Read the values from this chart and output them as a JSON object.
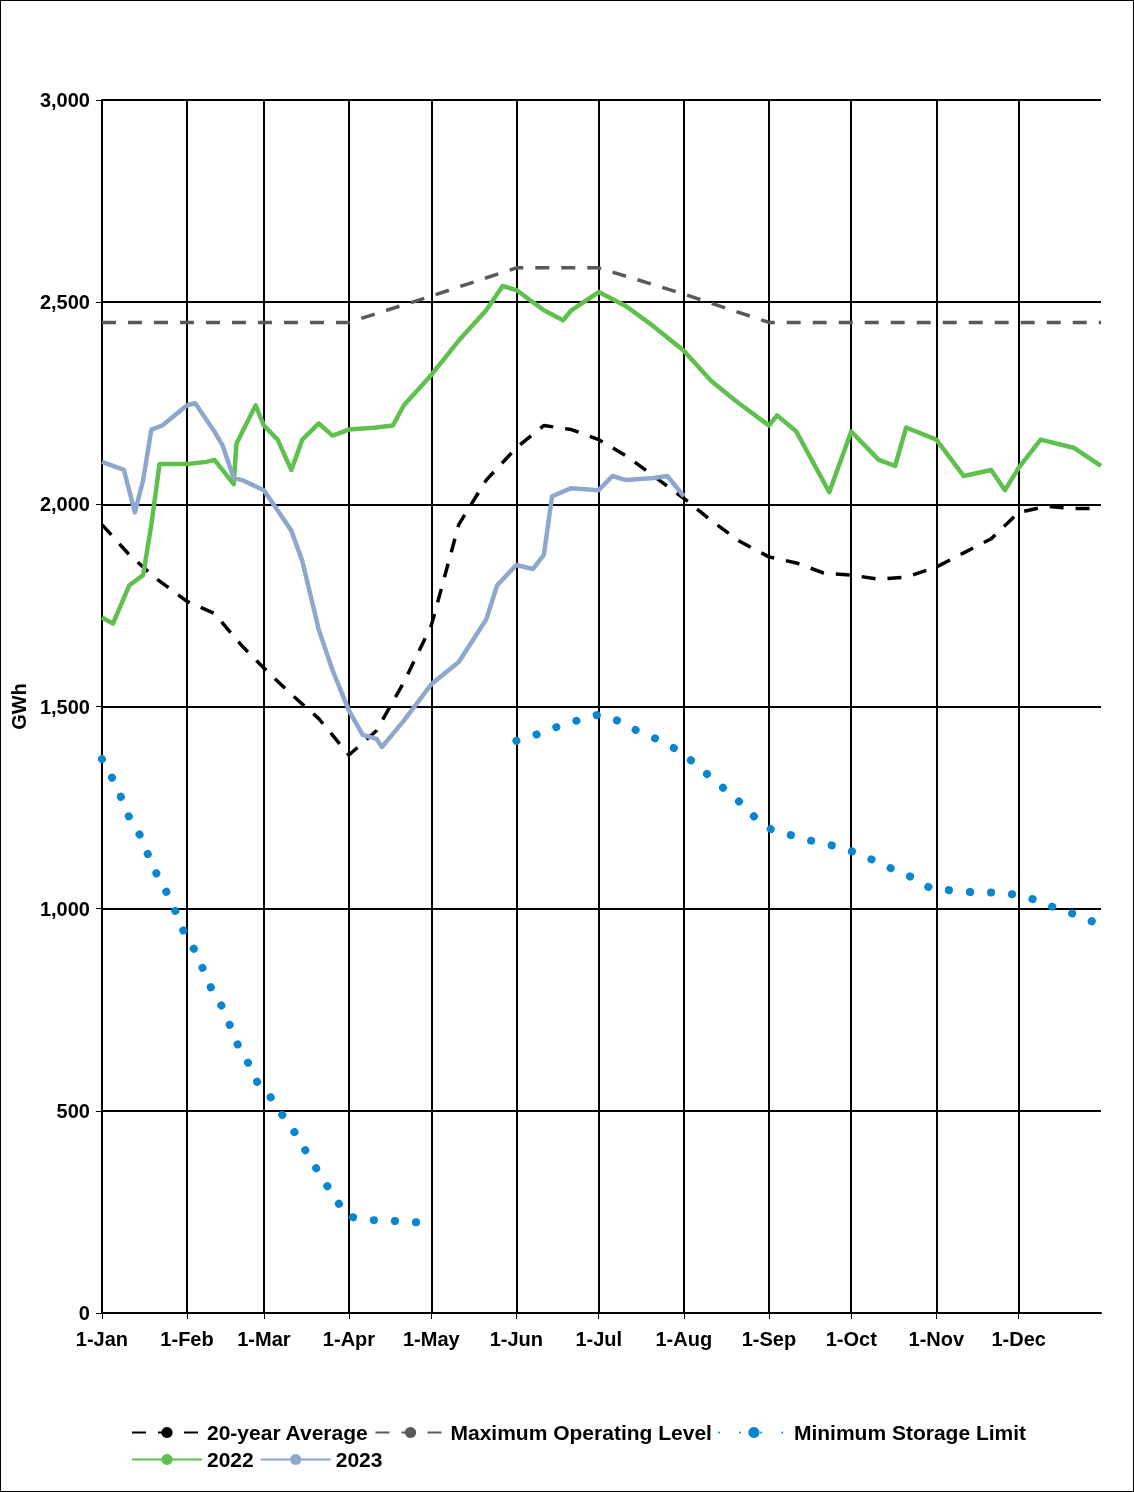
{
  "chart_data": {
    "type": "line",
    "ylabel": "GWh",
    "xlim": [
      "--01-01",
      "--12-31"
    ],
    "xticks": [
      {
        "value": "--01-01",
        "label": "1-Jan"
      },
      {
        "value": "--02-01",
        "label": "1-Feb"
      },
      {
        "value": "--03-01",
        "label": "1-Mar"
      },
      {
        "value": "--04-01",
        "label": "1-Apr"
      },
      {
        "value": "--05-01",
        "label": "1-May"
      },
      {
        "value": "--06-01",
        "label": "1-Jun"
      },
      {
        "value": "--07-01",
        "label": "1-Jul"
      },
      {
        "value": "--08-01",
        "label": "1-Aug"
      },
      {
        "value": "--09-01",
        "label": "1-Sep"
      },
      {
        "value": "--10-01",
        "label": "1-Oct"
      },
      {
        "value": "--11-01",
        "label": "1-Nov"
      },
      {
        "value": "--12-01",
        "label": "1-Dec"
      }
    ],
    "ylim": [
      0,
      3000
    ],
    "yticks": [
      0,
      {
        "value": 500,
        "label": "500"
      },
      {
        "value": 1000,
        "label": "1,000"
      },
      {
        "value": 1500,
        "label": "1,500"
      },
      {
        "value": 2000,
        "label": "2,000"
      },
      {
        "value": 2500,
        "label": "2,500"
      },
      {
        "value": 3000,
        "label": "3,000"
      }
    ],
    "grid": true,
    "legend": "bottom",
    "marker": "none",
    "series": [
      {
        "name": "20-year Average",
        "color": "#000000",
        "line_style": "dashed",
        "x": [
          "--01-01",
          "--01-11",
          "--01-21",
          "--02-01",
          "--02-11",
          "--02-21",
          "--03-01",
          "--03-11",
          "--03-21",
          "--04-01",
          "--04-11",
          "--04-21",
          "--05-01",
          "--05-11",
          "--05-21",
          "--06-01",
          "--06-11",
          "--06-21",
          "--07-01",
          "--07-11",
          "--07-21",
          "--08-01",
          "--08-11",
          "--08-21",
          "--09-01",
          "--09-11",
          "--09-21",
          "--10-01",
          "--10-11",
          "--10-21",
          "--11-01",
          "--11-11",
          "--11-21",
          "--12-01",
          "--12-11",
          "--12-21",
          "--12-31"
        ],
        "values": [
          1950,
          1875,
          1815,
          1760,
          1730,
          1650,
          1595,
          1530,
          1470,
          1380,
          1440,
          1560,
          1700,
          1950,
          2060,
          2140,
          2195,
          2185,
          2160,
          2120,
          2070,
          2015,
          1960,
          1910,
          1870,
          1855,
          1830,
          1825,
          1815,
          1820,
          1845,
          1880,
          1915,
          1980,
          1995,
          1990,
          1990
        ]
      },
      {
        "name": "Maximum Operating Level",
        "color": "#595959",
        "line_style": "dashed",
        "x": [
          "--01-01",
          "--04-01",
          "--05-01",
          "--06-01",
          "--07-01",
          "--08-01",
          "--09-01",
          "--12-31"
        ],
        "values": [
          2450,
          2450,
          2515,
          2585,
          2585,
          2520,
          2450,
          2450
        ]
      },
      {
        "name": "Minimum Storage Limit",
        "color": "#0a86d0",
        "line_style": "dotted",
        "x": [
          "--01-01",
          "--01-05",
          "--01-08",
          "--01-11",
          "--01-15",
          "--01-18",
          "--01-21",
          "--01-25",
          "--01-28",
          "--01-31",
          "--02-04",
          "--02-07",
          "--02-10",
          "--02-14",
          "--02-17",
          "--02-20",
          "--02-24",
          "--02-27",
          "--03-02",
          "--03-06",
          "--03-11",
          "--03-15",
          "--03-19",
          "--03-23",
          "--03-27",
          "--03-31",
          "--04-08",
          "--04-16",
          "--04-24",
          "--05-01",
          "--05-15",
          "--06-01",
          "--06-08",
          "--06-16",
          "--06-23",
          "--07-01",
          "--07-08",
          "--07-15",
          "--07-22",
          "--07-29",
          "--08-04",
          "--08-10",
          "--08-16",
          "--08-22",
          "--08-27",
          "--09-02",
          "--09-10",
          "--09-18",
          "--09-25",
          "--10-02",
          "--10-09",
          "--10-17",
          "--10-24",
          "--10-30",
          "--11-07",
          "--11-15",
          "--11-22",
          "--11-30",
          "--12-08",
          "--12-15",
          "--12-22",
          "--12-29"
        ],
        "values": [
          1370,
          1320,
          1275,
          1225,
          1180,
          1130,
          1085,
          1035,
          990,
          940,
          895,
          848,
          800,
          755,
          705,
          655,
          610,
          565,
          550,
          505,
          460,
          415,
          370,
          325,
          285,
          240,
          230,
          228,
          225,
          222,
          null,
          1415,
          1430,
          1450,
          1465,
          1480,
          1465,
          1440,
          1420,
          1395,
          1365,
          1330,
          1295,
          1260,
          1225,
          1195,
          1180,
          1165,
          1155,
          1140,
          1120,
          1095,
          1075,
          1050,
          1045,
          1040,
          1040,
          1035,
          1020,
          1000,
          985,
          965
        ]
      },
      {
        "name": "2022",
        "color": "#5fc04d",
        "line_style": "solid",
        "x": [
          "--01-01",
          "--01-05",
          "--01-11",
          "--01-16",
          "--01-19",
          "--01-22",
          "--02-01",
          "--02-08",
          "--02-11",
          "--02-18",
          "--02-19",
          "--02-26",
          "--03-01",
          "--03-06",
          "--03-11",
          "--03-15",
          "--03-21",
          "--03-26",
          "--04-01",
          "--04-11",
          "--04-17",
          "--04-21",
          "--05-01",
          "--05-11",
          "--05-21",
          "--05-27",
          "--06-01",
          "--06-11",
          "--06-18",
          "--06-21",
          "--07-01",
          "--07-11",
          "--07-21",
          "--08-01",
          "--08-11",
          "--08-21",
          "--09-01",
          "--09-04",
          "--09-11",
          "--09-23",
          "--10-01",
          "--10-11",
          "--10-17",
          "--10-21",
          "--11-01",
          "--11-11",
          "--11-21",
          "--11-26",
          "--12-01",
          "--12-09",
          "--12-21",
          "--12-31"
        ],
        "values": [
          1720,
          1705,
          1800,
          1825,
          1950,
          2100,
          2100,
          2105,
          2110,
          2050,
          2150,
          2245,
          2195,
          2160,
          2085,
          2160,
          2200,
          2170,
          2185,
          2190,
          2195,
          2245,
          2320,
          2405,
          2480,
          2540,
          2530,
          2480,
          2455,
          2480,
          2525,
          2490,
          2440,
          2380,
          2305,
          2250,
          2195,
          2220,
          2180,
          2030,
          2180,
          2110,
          2095,
          2190,
          2160,
          2070,
          2085,
          2035,
          2090,
          2160,
          2140,
          2095
        ]
      },
      {
        "name": "2023",
        "color": "#8fa7cf",
        "line_style": "solid",
        "x": [
          "--01-01",
          "--01-05",
          "--01-09",
          "--01-13",
          "--01-16",
          "--01-19",
          "--01-23",
          "--02-01",
          "--02-04",
          "--02-08",
          "--02-11",
          "--02-14",
          "--02-18",
          "--02-21",
          "--03-01",
          "--03-11",
          "--03-15",
          "--03-21",
          "--03-26",
          "--04-01",
          "--04-06",
          "--04-11",
          "--04-13",
          "--04-21",
          "--05-01",
          "--05-11",
          "--05-21",
          "--05-25",
          "--06-01",
          "--06-07",
          "--06-11",
          "--06-14",
          "--06-21",
          "--07-01",
          "--07-06",
          "--07-11",
          "--07-21",
          "--07-26",
          "--08-01"
        ],
        "values": [
          2105,
          2095,
          2085,
          1980,
          2060,
          2185,
          2195,
          2245,
          2250,
          2210,
          2180,
          2145,
          2065,
          2060,
          2035,
          1935,
          1860,
          1690,
          1590,
          1490,
          1430,
          1420,
          1400,
          1465,
          1555,
          1610,
          1715,
          1800,
          1850,
          1840,
          1875,
          2020,
          2040,
          2035,
          2070,
          2060,
          2065,
          2070,
          2020
        ]
      }
    ]
  }
}
